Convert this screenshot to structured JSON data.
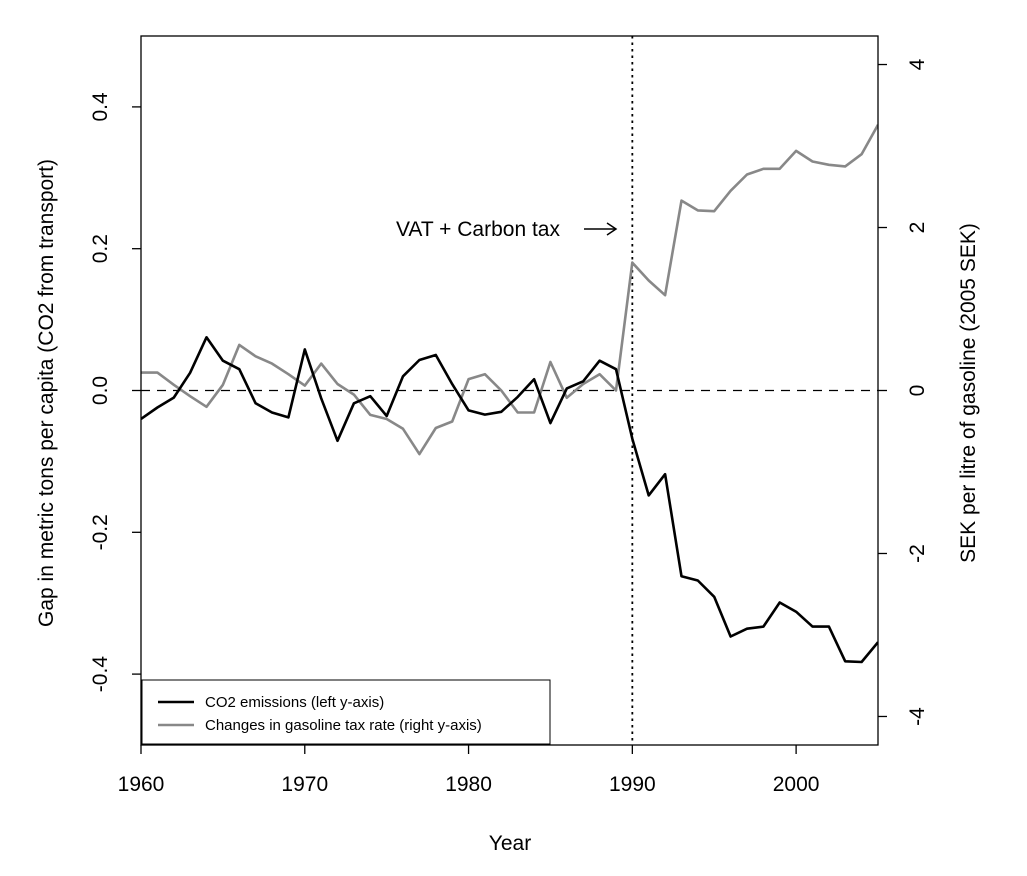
{
  "chart_data": {
    "type": "line",
    "xlabel": "Year",
    "ylabel_left": "Gap in metric tons per capita (CO2 from transport)",
    "ylabel_right": "SEK per litre of gasoline (2005 SEK)",
    "xlim": [
      1960,
      2005
    ],
    "ylim_left": [
      -0.5,
      0.5
    ],
    "ylim_right": [
      -4.35,
      4.35
    ],
    "x_ticks": [
      1960,
      1970,
      1980,
      1990,
      2000
    ],
    "y_left_ticks": [
      -0.4,
      -0.2,
      0.0,
      0.2,
      0.4
    ],
    "y_left_tick_labels": [
      "-0.4",
      "-0.2",
      "0.0",
      "0.2",
      "0.4"
    ],
    "y_right_ticks": [
      -4,
      -2,
      0,
      2,
      4
    ],
    "y_right_tick_labels": [
      "-4",
      "-2",
      "0",
      "2",
      "4"
    ],
    "grid": false,
    "legend_position": "bottom-left",
    "reference_lines": {
      "vertical_x": 1990,
      "horizontal_y": 0
    },
    "annotation": {
      "text": "VAT + Carbon tax",
      "points_to": {
        "x": 1990,
        "y_right": 1.97
      }
    },
    "x": [
      1960,
      1961,
      1962,
      1963,
      1964,
      1965,
      1966,
      1967,
      1968,
      1969,
      1970,
      1971,
      1972,
      1973,
      1974,
      1975,
      1976,
      1977,
      1978,
      1979,
      1980,
      1981,
      1982,
      1983,
      1984,
      1985,
      1986,
      1987,
      1988,
      1989,
      1990,
      1991,
      1992,
      1993,
      1994,
      1995,
      1996,
      1997,
      1998,
      1999,
      2000,
      2001,
      2002,
      2003,
      2004,
      2005
    ],
    "series": [
      {
        "name": "CO2 emissions (left y-axis)",
        "axis": "left",
        "color": "#000000",
        "values": [
          -0.04,
          -0.024,
          -0.01,
          0.025,
          0.075,
          0.042,
          0.03,
          -0.018,
          -0.031,
          -0.038,
          0.058,
          -0.011,
          -0.071,
          -0.018,
          -0.008,
          -0.036,
          0.02,
          0.043,
          0.05,
          0.009,
          -0.028,
          -0.034,
          -0.03,
          -0.009,
          0.016,
          -0.046,
          0.003,
          0.013,
          0.042,
          0.03,
          -0.068,
          -0.148,
          -0.118,
          -0.262,
          -0.268,
          -0.291,
          -0.347,
          -0.336,
          -0.333,
          -0.299,
          -0.312,
          -0.333,
          -0.333,
          -0.382,
          -0.383,
          -0.355
        ]
      },
      {
        "name": "Changes in gasoline tax rate (right y-axis)",
        "axis": "right",
        "color": "#888888",
        "values": [
          0.22,
          0.22,
          0.07,
          -0.07,
          -0.2,
          0.07,
          0.56,
          0.42,
          0.33,
          0.2,
          0.06,
          0.33,
          0.08,
          -0.05,
          -0.3,
          -0.35,
          -0.47,
          -0.78,
          -0.46,
          -0.38,
          0.14,
          0.2,
          0.0,
          -0.27,
          -0.27,
          0.35,
          -0.09,
          0.08,
          0.2,
          0.0,
          1.57,
          1.35,
          1.17,
          2.33,
          2.21,
          2.2,
          2.45,
          2.65,
          2.72,
          2.72,
          2.94,
          2.81,
          2.77,
          2.75,
          2.9,
          3.26
        ]
      }
    ]
  }
}
